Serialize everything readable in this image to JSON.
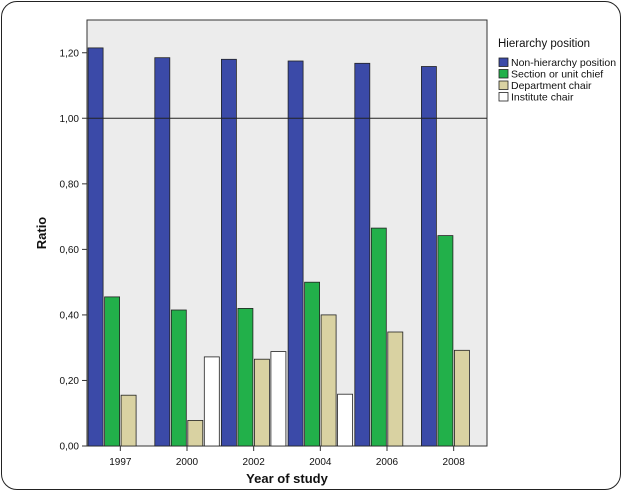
{
  "chart_data": {
    "type": "bar",
    "xlabel": "Year of study",
    "ylabel": "Ratio",
    "categories": [
      "1997",
      "2000",
      "2002",
      "2004",
      "2006",
      "2008"
    ],
    "ylim": [
      0,
      1.3
    ],
    "yticks": [
      "0,00",
      "0,20",
      "0,40",
      "0,60",
      "0,80",
      "1,00",
      "1,20"
    ],
    "reference_line": 1.0,
    "grid": false,
    "legend": {
      "title": "Hierarchy position",
      "placement": "right"
    },
    "series": [
      {
        "name": "Non-hierarchy position",
        "color": "#3b4aa8",
        "values": [
          1.215,
          1.185,
          1.18,
          1.175,
          1.168,
          1.158
        ]
      },
      {
        "name": "Section or unit chief",
        "color": "#22b04a",
        "values": [
          0.455,
          0.415,
          0.42,
          0.5,
          0.665,
          0.642
        ]
      },
      {
        "name": "Department chair",
        "color": "#d9d2a2",
        "values": [
          0.155,
          0.078,
          0.265,
          0.4,
          0.348,
          0.292
        ]
      },
      {
        "name": "Institute chair",
        "color": "#ffffff",
        "values": [
          0,
          0.272,
          0.288,
          0.158,
          0,
          0
        ]
      }
    ],
    "plot_background": "#ececec"
  }
}
